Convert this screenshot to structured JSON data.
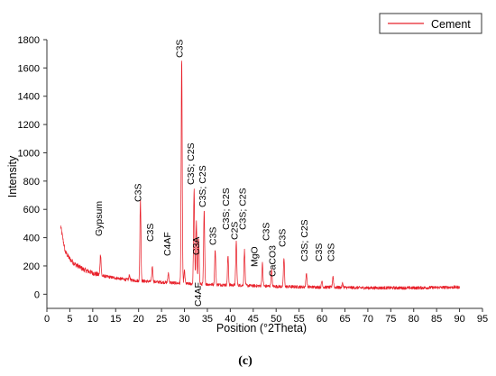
{
  "chart_data": {
    "type": "line",
    "title": "",
    "xlabel": "Position (°2Theta)",
    "ylabel": "Intensity",
    "xlim": [
      0,
      95
    ],
    "ylim": [
      -100,
      1800
    ],
    "x_ticks": [
      0,
      5,
      10,
      15,
      20,
      25,
      30,
      35,
      40,
      45,
      50,
      55,
      60,
      65,
      70,
      75,
      80,
      85,
      90,
      95
    ],
    "y_ticks": [
      0,
      200,
      400,
      600,
      800,
      1000,
      1200,
      1400,
      1600,
      1800
    ],
    "grid": false,
    "legend": "top-right",
    "series": [
      {
        "name": "Cement",
        "color": "#e8202a",
        "background": [
          [
            3,
            480
          ],
          [
            4,
            300
          ],
          [
            5,
            250
          ],
          [
            6,
            215
          ],
          [
            8,
            175
          ],
          [
            10,
            150
          ],
          [
            12,
            130
          ],
          [
            15,
            115
          ],
          [
            18,
            100
          ],
          [
            20,
            95
          ],
          [
            25,
            85
          ],
          [
            30,
            75
          ],
          [
            35,
            70
          ],
          [
            40,
            65
          ],
          [
            45,
            60
          ],
          [
            50,
            55
          ],
          [
            55,
            52
          ],
          [
            60,
            50
          ],
          [
            70,
            45
          ],
          [
            80,
            45
          ],
          [
            90,
            50
          ]
        ],
        "peaks": [
          [
            11.7,
            155
          ],
          [
            18.0,
            35
          ],
          [
            20.4,
            570
          ],
          [
            23.0,
            110
          ],
          [
            26.5,
            70
          ],
          [
            29.4,
            1580
          ],
          [
            30.0,
            90
          ],
          [
            32.1,
            675
          ],
          [
            32.6,
            440
          ],
          [
            33.1,
            330
          ],
          [
            34.3,
            520
          ],
          [
            36.7,
            250
          ],
          [
            39.5,
            205
          ],
          [
            41.3,
            310
          ],
          [
            43.1,
            250
          ],
          [
            47.0,
            160
          ],
          [
            49.0,
            120
          ],
          [
            51.7,
            200
          ],
          [
            56.6,
            100
          ],
          [
            60.0,
            45
          ],
          [
            62.4,
            80
          ],
          [
            64.5,
            30
          ]
        ]
      }
    ],
    "annotations": [
      {
        "text": "Gypsum",
        "x": 11.7
      },
      {
        "text": "C3S",
        "x": 20.4
      },
      {
        "text": "C3S",
        "x": 23.0
      },
      {
        "text": "C4AF",
        "x": 26.7
      },
      {
        "text": "C3S",
        "x": 29.4
      },
      {
        "text": "C3S; C2S",
        "x": 32.1
      },
      {
        "text": "C3S; C2S",
        "x": 34.3
      },
      {
        "text": "C3A",
        "x": 33.1
      },
      {
        "text": "C4AF",
        "x": 33.6
      },
      {
        "text": "C3S",
        "x": 36.7
      },
      {
        "text": "C3S; C2S",
        "x": 39.5
      },
      {
        "text": "C2S",
        "x": 41.3
      },
      {
        "text": "C3S; C2S",
        "x": 43.1
      },
      {
        "text": "MgO",
        "x": 45.9
      },
      {
        "text": "C3S",
        "x": 48.2
      },
      {
        "text": "CaCO3",
        "x": 49.9
      },
      {
        "text": "C3S",
        "x": 51.7
      },
      {
        "text": "C3S; C2S",
        "x": 56.6
      },
      {
        "text": "C3S",
        "x": 59.7
      },
      {
        "text": "C3S",
        "x": 62.4
      }
    ]
  },
  "caption": "(c)"
}
